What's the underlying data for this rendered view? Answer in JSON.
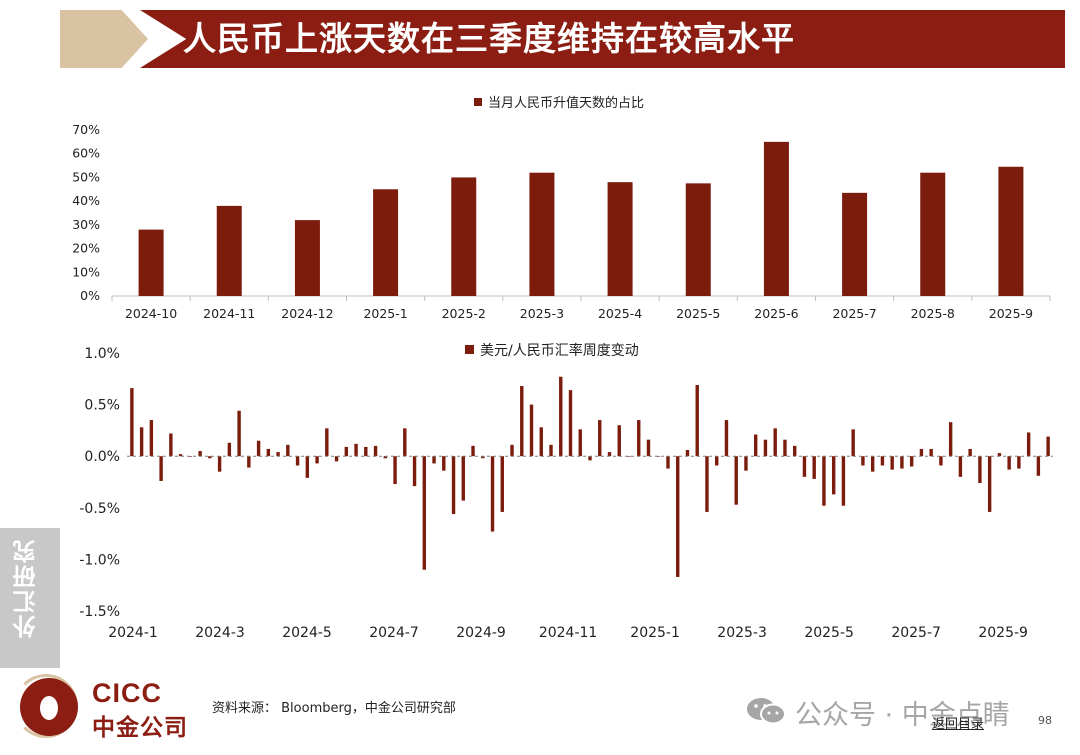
{
  "header": {
    "title": "人民币上涨天数在三季度维持在较高水平"
  },
  "chart_data": [
    {
      "type": "bar",
      "title": "",
      "legend": {
        "label": "当月人民币升值天数的占比",
        "color": "#7b1c0c",
        "placement": "top-center"
      },
      "categories": [
        "2024-10",
        "2024-11",
        "2024-12",
        "2025-1",
        "2025-2",
        "2025-3",
        "2025-4",
        "2025-5",
        "2025-6",
        "2025-7",
        "2025-8",
        "2025-9"
      ],
      "series": [
        {
          "name": "当月人民币升值天数的占比",
          "values": [
            0.28,
            0.38,
            0.32,
            0.45,
            0.5,
            0.52,
            0.48,
            0.475,
            0.65,
            0.435,
            0.52,
            0.545
          ]
        }
      ],
      "ylim": [
        0,
        0.7
      ],
      "yticks": [
        0,
        0.1,
        0.2,
        0.3,
        0.4,
        0.5,
        0.6,
        0.7
      ],
      "ytick_labels": [
        "0%",
        "10%",
        "20%",
        "30%",
        "40%",
        "50%",
        "60%",
        "70%"
      ],
      "grid": false
    },
    {
      "type": "bar",
      "title": "",
      "legend": {
        "label": "美元/人民币汇率周度变动",
        "color": "#7b1c0c",
        "placement": "top-center"
      },
      "series": [
        {
          "name": "美元/人民币汇率周度变动",
          "values": [
            0.66,
            0.28,
            0.35,
            -0.24,
            0.22,
            0.02,
            0,
            0.05,
            -0.02,
            -0.15,
            0.13,
            0.44,
            -0.11,
            0.15,
            0.07,
            0.04,
            0.11,
            -0.09,
            -0.21,
            -0.07,
            0.27,
            -0.05,
            0.09,
            0.12,
            0.09,
            0.1,
            -0.02,
            -0.27,
            0.27,
            -0.29,
            -1.1,
            -0.07,
            -0.14,
            -0.56,
            -0.43,
            0.1,
            -0.02,
            -0.73,
            -0.54,
            0.11,
            0.68,
            0.5,
            0.28,
            0.11,
            0.77,
            0.64,
            0.26,
            -0.04,
            0.35,
            0.04,
            0.3,
            0,
            0.35,
            0.16,
            0,
            -0.12,
            -1.17,
            0.06,
            0.69,
            -0.54,
            -0.09,
            0.35,
            -0.47,
            -0.14,
            0.21,
            0.16,
            0.27,
            0.16,
            0.1,
            -0.2,
            -0.22,
            -0.48,
            -0.37,
            -0.48,
            0.26,
            -0.09,
            -0.15,
            -0.09,
            -0.13,
            -0.12,
            -0.1,
            0.07,
            0.07,
            -0.09,
            0.33,
            -0.2,
            0.07,
            -0.26,
            -0.54,
            0.03,
            -0.13,
            -0.12,
            0.23,
            -0.19,
            0.19
          ]
        }
      ],
      "x_tick_labels": [
        "2024-1",
        "2024-3",
        "2024-5",
        "2024-7",
        "2024-9",
        "2024-11",
        "2025-1",
        "2025-3",
        "2025-5",
        "2025-7",
        "2025-9"
      ],
      "ylim": [
        -1.5,
        1.0
      ],
      "yticks": [
        1.0,
        0.5,
        0.0,
        -0.5,
        -1.0,
        -1.5
      ],
      "ytick_labels": [
        "1.0%",
        "0.5%",
        "0.0%",
        "-0.5%",
        "-1.0%",
        "-1.5%"
      ],
      "grid": false
    }
  ],
  "side_tab": {
    "label": "外汇研究"
  },
  "logo": {
    "en": "CICC",
    "cn": "中金公司"
  },
  "footer": {
    "source": "资料来源： Bloomberg，中金公司研究部",
    "watermark": "公众号 · 中金点睛",
    "back_link": "返回目录",
    "page_number": "98"
  },
  "colors": {
    "bar": "#7b1c0c",
    "header": "#8b1d12",
    "header_accent": "#d9c3a3"
  }
}
